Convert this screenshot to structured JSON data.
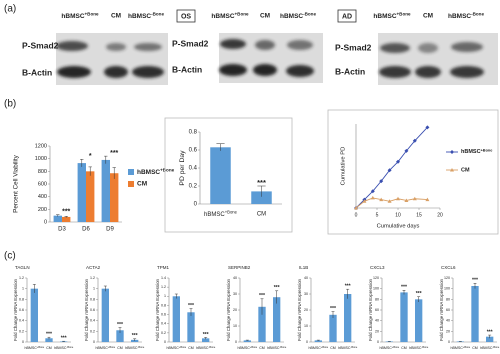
{
  "panel_labels": [
    "(a)",
    "(b)",
    "(c)"
  ],
  "blots": [
    {
      "columns": [
        "hBMSC+Bone",
        "CM",
        "hBMSC-Bone"
      ],
      "rows": [
        "P-Smad2",
        "B-Actin"
      ]
    },
    {
      "tag": "OS",
      "columns": [
        "hBMSC+Bone",
        "CM",
        "hBMSC-Bone"
      ],
      "rows": [
        "P-Smad2",
        "B-Actin"
      ]
    },
    {
      "tag": "AD",
      "columns": [
        "hBMSC+Bone",
        "CM",
        "hBMSC-Bone"
      ],
      "rows": [
        "P-Smad2",
        "B-Actin"
      ]
    }
  ],
  "chart_data": [
    {
      "type": "bar",
      "ylabel": "Percent Cell Viability",
      "categories": [
        "D3",
        "D6",
        "D9"
      ],
      "series": [
        {
          "name": "hBMSC+Bone",
          "color": "#5b9bd5",
          "values": [
            100,
            930,
            980
          ],
          "errors": [
            15,
            60,
            60
          ]
        },
        {
          "name": "CM",
          "color": "#ed7d31",
          "values": [
            80,
            800,
            770
          ],
          "errors": [
            10,
            70,
            90
          ]
        }
      ],
      "annotations": [
        "***",
        "*",
        "***"
      ],
      "ylim": [
        0,
        1200
      ],
      "yticks": [
        0,
        200,
        400,
        600,
        800,
        1000,
        1200
      ]
    },
    {
      "type": "bar",
      "ylabel": "PD per Day",
      "categories": [
        "hBMSC+Bone",
        "CM"
      ],
      "color": "#5b9bd5",
      "values": [
        0.63,
        0.14
      ],
      "errors": [
        0.04,
        0.06
      ],
      "annotations": [
        null,
        "***"
      ],
      "ylim": [
        0,
        0.8
      ],
      "yticks": [
        0,
        0.2,
        0.4,
        0.6,
        0.8
      ]
    },
    {
      "type": "line",
      "ylabel": "Cumulative PD",
      "xlabel": "Cumulative days",
      "x": [
        0,
        2,
        4,
        6,
        8,
        10,
        12,
        14,
        17
      ],
      "series": [
        {
          "name": "hBMSC+Bone",
          "color": "#3a4fb0",
          "marker": "diamond",
          "values": [
            0,
            1,
            2,
            3.2,
            4.5,
            5.5,
            6.8,
            8,
            9.6
          ]
        },
        {
          "name": "CM",
          "color": "#d9a066",
          "marker": "triangle",
          "values": [
            0,
            0.8,
            1.2,
            1,
            0.8,
            1.1,
            0.9,
            1.1,
            1
          ]
        }
      ],
      "xlim": [
        0,
        20
      ],
      "xticks": [
        0,
        5,
        10,
        15,
        20
      ],
      "ylim": [
        0,
        10
      ]
    },
    {
      "type": "bar",
      "title": "TAGLN",
      "ylabel": "Fold Change mRNA Expression",
      "categories": [
        "hBMSC+Bone",
        "CM",
        "hBMSC-Bone"
      ],
      "color": "#5b9bd5",
      "values": [
        1,
        0.07,
        0.01
      ],
      "errors": [
        0.08,
        0.02,
        0.005
      ],
      "annotations": [
        null,
        "***",
        "***"
      ],
      "ylim": [
        0,
        1.2
      ],
      "yticks": [
        0,
        0.2,
        0.4,
        0.6,
        0.8,
        1,
        1.2
      ]
    },
    {
      "type": "bar",
      "title": "ACTA2",
      "ylabel": "Fold Change mRNA Expression",
      "categories": [
        "hBMSC+Bone",
        "CM",
        "hBMSC-Bone"
      ],
      "color": "#5b9bd5",
      "values": [
        1,
        0.22,
        0.04
      ],
      "errors": [
        0.05,
        0.05,
        0.02
      ],
      "annotations": [
        null,
        "***",
        "***"
      ],
      "ylim": [
        0,
        1.2
      ],
      "yticks": [
        0,
        0.2,
        0.4,
        0.6,
        0.8,
        1,
        1.2
      ]
    },
    {
      "type": "bar",
      "title": "TPM1",
      "ylabel": "Fold Change mRNA Expression",
      "categories": [
        "hBMSC+Bone",
        "CM",
        "hBMSC-Bone"
      ],
      "color": "#5b9bd5",
      "values": [
        1,
        0.65,
        0.08
      ],
      "errors": [
        0.05,
        0.08,
        0.02
      ],
      "annotations": [
        null,
        "***",
        "***"
      ],
      "ylim": [
        0,
        1.4
      ],
      "yticks": [
        0,
        0.2,
        0.4,
        0.6,
        0.8,
        1,
        1.2,
        1.4
      ]
    },
    {
      "type": "bar",
      "title": "SERPINB2",
      "ylabel": "Fold Change mRNA Expression",
      "categories": [
        "hBMSC+Bone",
        "CM",
        "hBMSC-Bone"
      ],
      "color": "#5b9bd5",
      "values": [
        1,
        22,
        28
      ],
      "errors": [
        0.2,
        5,
        4
      ],
      "annotations": [
        null,
        "***",
        "***"
      ],
      "ylim": [
        0,
        40
      ],
      "yticks": [
        0,
        10,
        20,
        30,
        40
      ]
    },
    {
      "type": "bar",
      "title": "IL1B",
      "ylabel": "Fold Change mRNA Expression",
      "categories": [
        "hBMSC+Bone",
        "CM",
        "hBMSC-Bone"
      ],
      "color": "#5b9bd5",
      "values": [
        1,
        17,
        30
      ],
      "errors": [
        0.2,
        2,
        3
      ],
      "annotations": [
        null,
        "***",
        "***"
      ],
      "ylim": [
        0,
        40
      ],
      "yticks": [
        0,
        10,
        20,
        30,
        40
      ]
    },
    {
      "type": "bar",
      "title": "CXCL3",
      "ylabel": "Fold Change mRNA Expression",
      "categories": [
        "hBMSC+Bone",
        "CM",
        "hBMSC-Bone"
      ],
      "color": "#5b9bd5",
      "values": [
        1,
        93,
        80
      ],
      "errors": [
        0.2,
        4,
        5
      ],
      "annotations": [
        null,
        "***",
        "***"
      ],
      "ylim": [
        0,
        120
      ],
      "yticks": [
        0,
        20,
        40,
        60,
        80,
        100,
        120
      ]
    },
    {
      "type": "bar",
      "title": "CXCL6",
      "ylabel": "Fold Change mRNA Expression",
      "categories": [
        "hBMSC+Bone",
        "CM",
        "hBMSC-Bone"
      ],
      "color": "#5b9bd5",
      "values": [
        1,
        105,
        10
      ],
      "errors": [
        0.2,
        5,
        3
      ],
      "annotations": [
        null,
        "***",
        "***"
      ],
      "ylim": [
        0,
        120
      ],
      "yticks": [
        0,
        20,
        40,
        60,
        80,
        100,
        120
      ]
    }
  ]
}
